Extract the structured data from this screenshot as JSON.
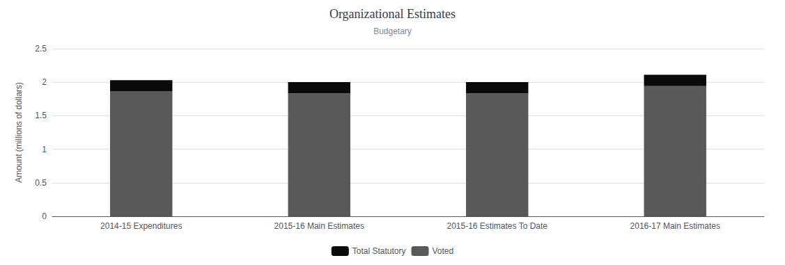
{
  "chart_data": {
    "type": "bar",
    "title": "Organizational Estimates",
    "subtitle": "Budgetary",
    "ylabel": "Amount (millions of dollars)",
    "categories": [
      "2014-15 Expenditures",
      "2015-16 Main Estimates",
      "2015-16 Estimates To Date",
      "2016-17 Main Estimates"
    ],
    "series": [
      {
        "name": "Voted",
        "color": "#595959",
        "values": [
          1.868,
          1.834,
          1.834,
          1.942
        ]
      },
      {
        "name": "Total Statutory",
        "color": "#0a0a0a",
        "values": [
          0.163,
          0.168,
          0.168,
          0.17
        ]
      }
    ],
    "stacked": true,
    "ylim": [
      0,
      2.5
    ],
    "yticks": [
      0,
      0.5,
      1,
      1.5,
      2,
      2.5
    ],
    "grid": true,
    "legend": "bottom"
  }
}
